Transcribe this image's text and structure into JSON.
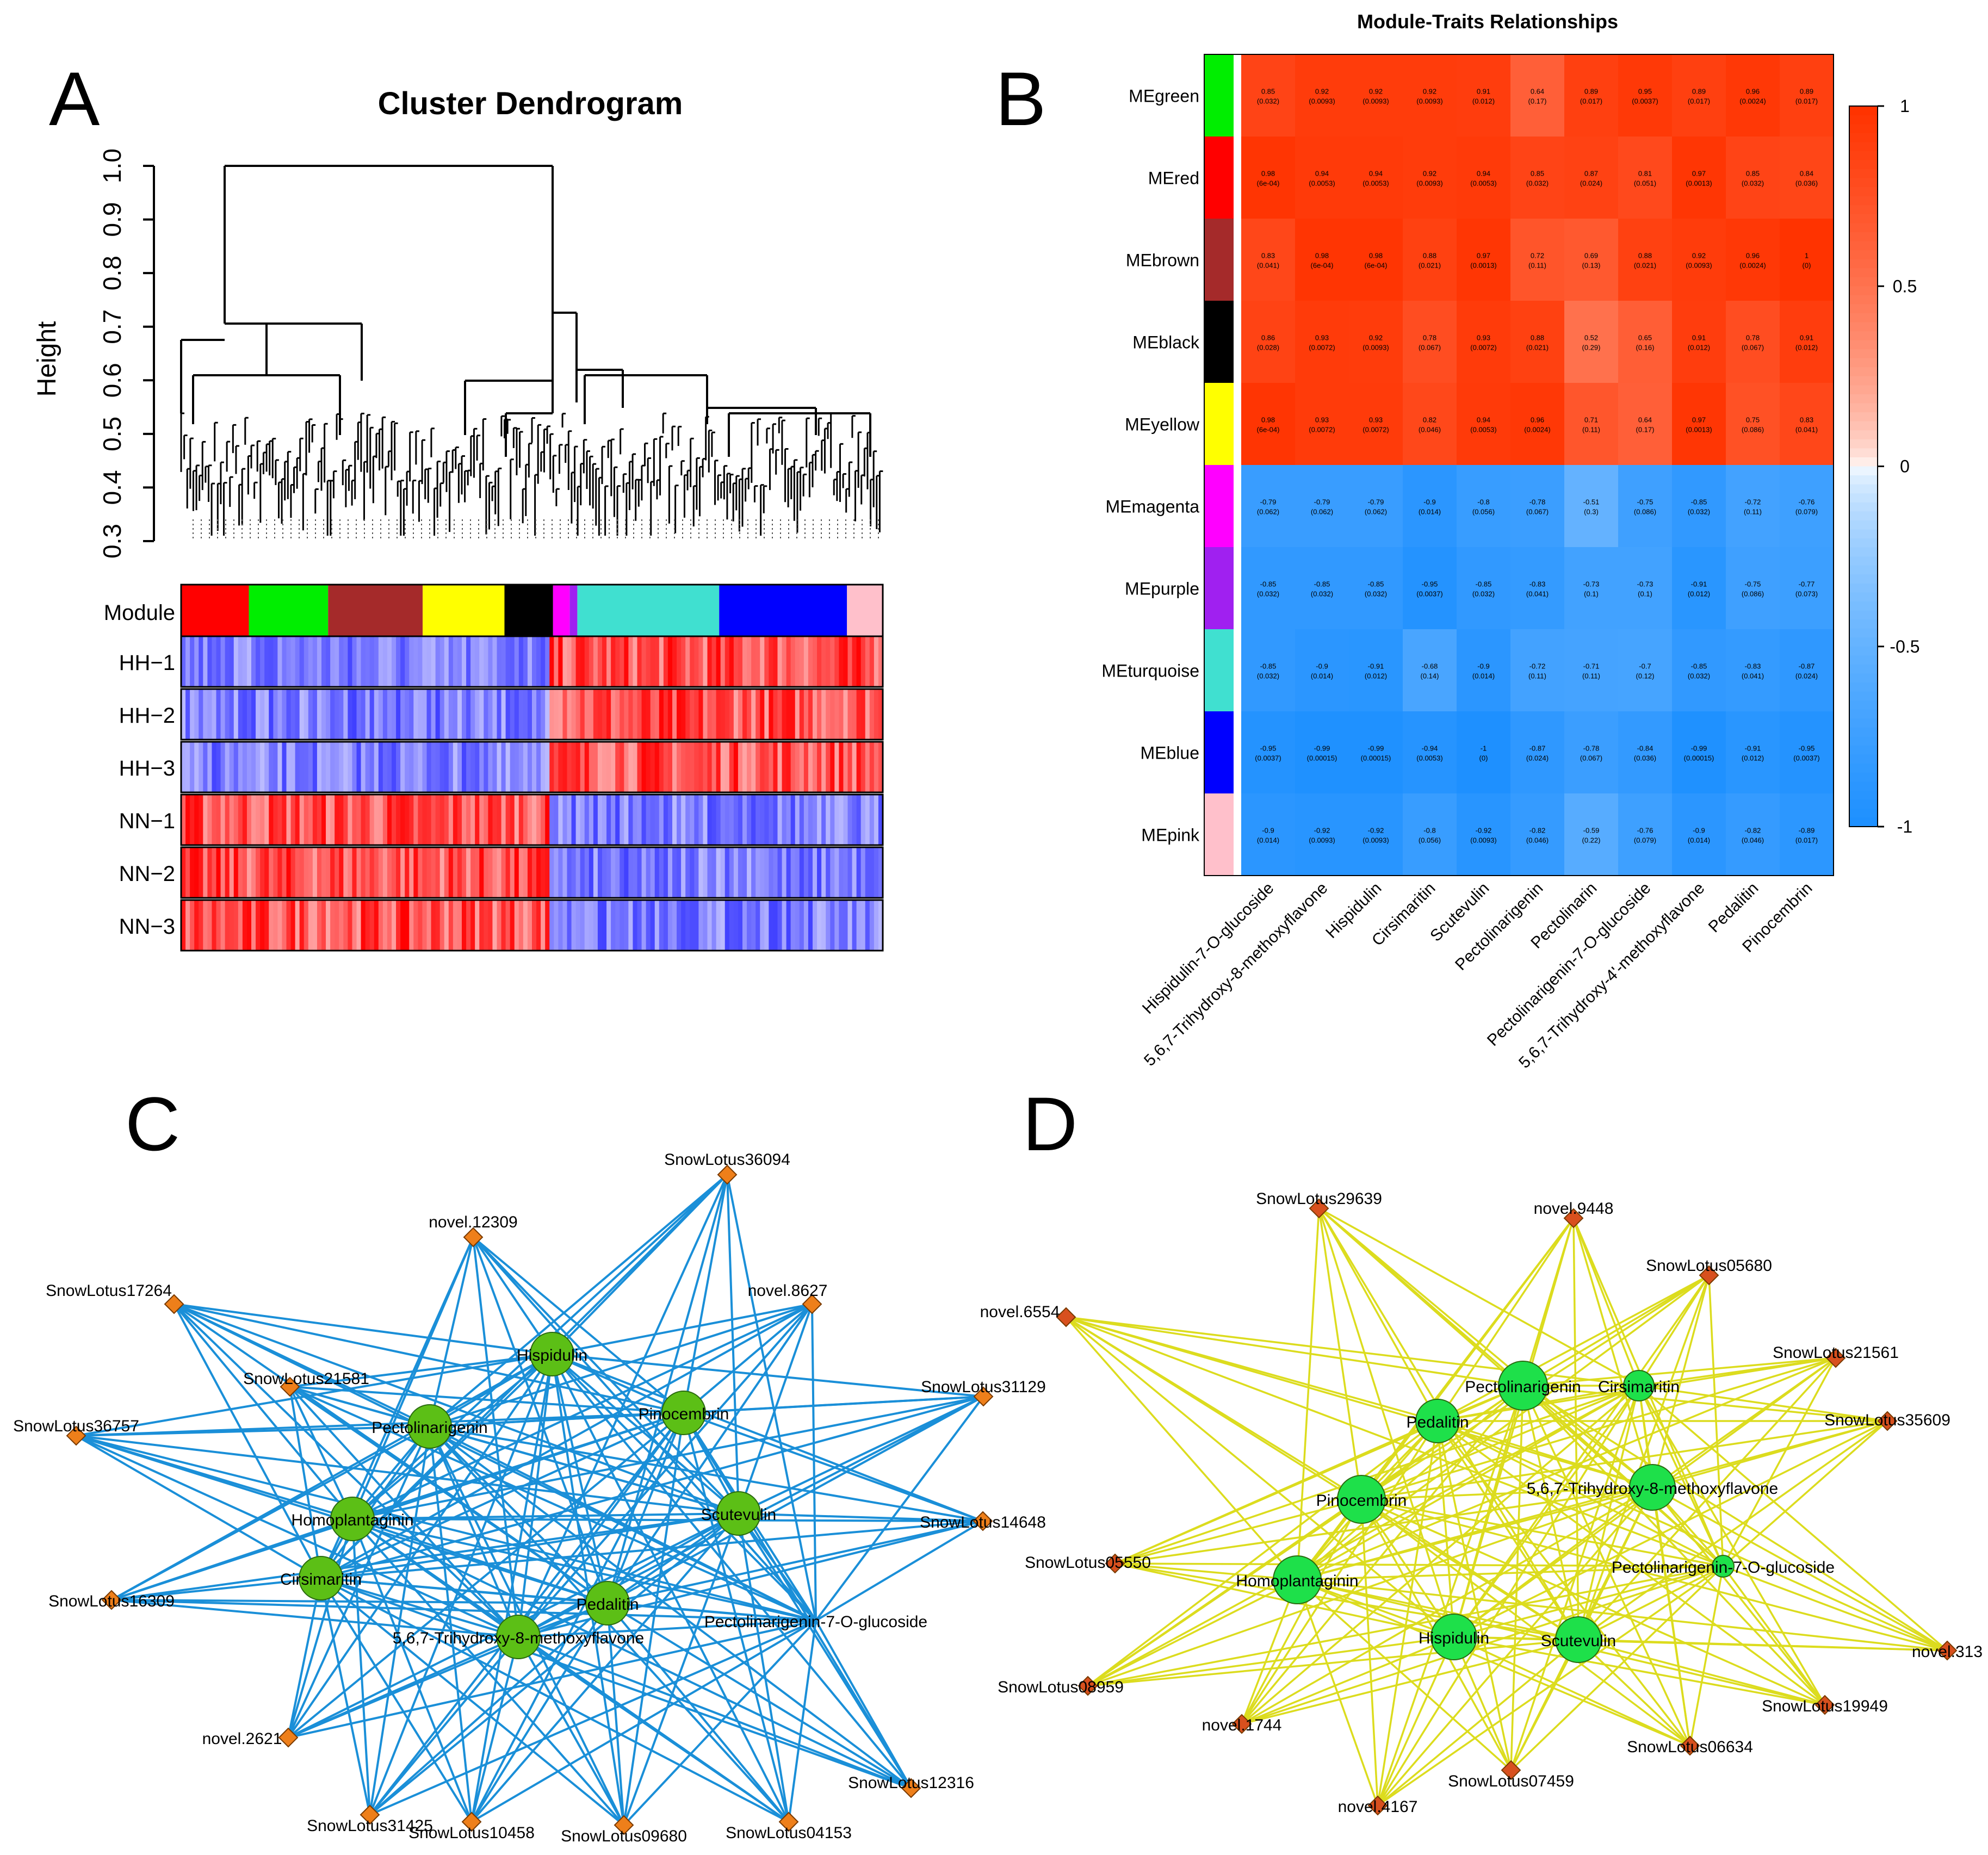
{
  "panels": {
    "a": "A",
    "b": "B",
    "c": "C",
    "d": "D"
  },
  "dendrogram": {
    "title": "Cluster Dendrogram",
    "ylabel": "Height",
    "yticks": [
      "0.3",
      "0.4",
      "0.5",
      "0.6",
      "0.7",
      "0.8",
      "0.9",
      "1.0"
    ],
    "module_label": "Module",
    "modules": [
      {
        "color": "#ff0000",
        "weight": 5.3
      },
      {
        "color": "#00ee00",
        "weight": 6.2
      },
      {
        "color": "#a52a2a",
        "weight": 7.4
      },
      {
        "color": "#ffff00",
        "weight": 6.4
      },
      {
        "color": "#000000",
        "weight": 3.8
      },
      {
        "color": "#ff00ff",
        "weight": 1.3
      },
      {
        "color": "#a020f0",
        "weight": 0.6
      },
      {
        "color": "#40e0d0",
        "weight": 11.1
      },
      {
        "color": "#0000ff",
        "weight": 10.0
      },
      {
        "color": "#ffc0cb",
        "weight": 2.8
      }
    ],
    "sample_rows": [
      "HH−1",
      "HH−2",
      "HH−3",
      "NN−1",
      "NN−2",
      "NN−3"
    ]
  },
  "heatmap": {
    "title": "Module-Traits Relationships",
    "modules": [
      {
        "name": "MEgreen",
        "color": "#00ee00",
        "values": [
          "0.85",
          "0.92",
          "0.92",
          "0.92",
          "0.91",
          "0.64",
          "0.89",
          "0.95",
          "0.89",
          "0.96",
          "0.89"
        ],
        "pvalues": [
          "(0.032)",
          "(0.0093)",
          "(0.0093)",
          "(0.0093)",
          "(0.012)",
          "(0.17)",
          "(0.017)",
          "(0.0037)",
          "(0.017)",
          "(0.0024)",
          "(0.017)"
        ]
      },
      {
        "name": "MEred",
        "color": "#ff0000",
        "values": [
          "0.98",
          "0.94",
          "0.94",
          "0.92",
          "0.94",
          "0.85",
          "0.87",
          "0.81",
          "0.97",
          "0.85",
          "0.84"
        ],
        "pvalues": [
          "(6e-04)",
          "(0.0053)",
          "(0.0053)",
          "(0.0093)",
          "(0.0053)",
          "(0.032)",
          "(0.024)",
          "(0.051)",
          "(0.0013)",
          "(0.032)",
          "(0.036)"
        ]
      },
      {
        "name": "MEbrown",
        "color": "#a52a2a",
        "values": [
          "0.83",
          "0.98",
          "0.98",
          "0.88",
          "0.97",
          "0.72",
          "0.69",
          "0.88",
          "0.92",
          "0.96",
          "1"
        ],
        "pvalues": [
          "(0.041)",
          "(6e-04)",
          "(6e-04)",
          "(0.021)",
          "(0.0013)",
          "(0.11)",
          "(0.13)",
          "(0.021)",
          "(0.0093)",
          "(0.0024)",
          "(0)"
        ]
      },
      {
        "name": "MEblack",
        "color": "#000000",
        "values": [
          "0.86",
          "0.93",
          "0.92",
          "0.78",
          "0.93",
          "0.88",
          "0.52",
          "0.65",
          "0.91",
          "0.78",
          "0.91"
        ],
        "pvalues": [
          "(0.028)",
          "(0.0072)",
          "(0.0093)",
          "(0.067)",
          "(0.0072)",
          "(0.021)",
          "(0.29)",
          "(0.16)",
          "(0.012)",
          "(0.067)",
          "(0.012)"
        ]
      },
      {
        "name": "MEyellow",
        "color": "#ffff00",
        "values": [
          "0.98",
          "0.93",
          "0.93",
          "0.82",
          "0.94",
          "0.96",
          "0.71",
          "0.64",
          "0.97",
          "0.75",
          "0.83"
        ],
        "pvalues": [
          "(6e-04)",
          "(0.0072)",
          "(0.0072)",
          "(0.046)",
          "(0.0053)",
          "(0.0024)",
          "(0.11)",
          "(0.17)",
          "(0.0013)",
          "(0.086)",
          "(0.041)"
        ]
      },
      {
        "name": "MEmagenta",
        "color": "#ff00ff",
        "values": [
          "-0.79",
          "-0.79",
          "-0.79",
          "-0.9",
          "-0.8",
          "-0.78",
          "-0.51",
          "-0.75",
          "-0.85",
          "-0.72",
          "-0.76"
        ],
        "pvalues": [
          "(0.062)",
          "(0.062)",
          "(0.062)",
          "(0.014)",
          "(0.056)",
          "(0.067)",
          "(0.3)",
          "(0.086)",
          "(0.032)",
          "(0.11)",
          "(0.079)"
        ]
      },
      {
        "name": "MEpurple",
        "color": "#a020f0",
        "values": [
          "-0.85",
          "-0.85",
          "-0.85",
          "-0.95",
          "-0.85",
          "-0.83",
          "-0.73",
          "-0.73",
          "-0.91",
          "-0.75",
          "-0.77"
        ],
        "pvalues": [
          "(0.032)",
          "(0.032)",
          "(0.032)",
          "(0.0037)",
          "(0.032)",
          "(0.041)",
          "(0.1)",
          "(0.1)",
          "(0.012)",
          "(0.086)",
          "(0.073)"
        ]
      },
      {
        "name": "MEturquoise",
        "color": "#40e0d0",
        "values": [
          "-0.85",
          "-0.9",
          "-0.91",
          "-0.68",
          "-0.9",
          "-0.72",
          "-0.71",
          "-0.7",
          "-0.85",
          "-0.83",
          "-0.87"
        ],
        "pvalues": [
          "(0.032)",
          "(0.014)",
          "(0.012)",
          "(0.14)",
          "(0.014)",
          "(0.11)",
          "(0.11)",
          "(0.12)",
          "(0.032)",
          "(0.041)",
          "(0.024)"
        ]
      },
      {
        "name": "MEblue",
        "color": "#0000ff",
        "values": [
          "-0.95",
          "-0.99",
          "-0.99",
          "-0.94",
          "-1",
          "-0.87",
          "-0.78",
          "-0.84",
          "-0.99",
          "-0.91",
          "-0.95"
        ],
        "pvalues": [
          "(0.0037)",
          "(0.00015)",
          "(0.00015)",
          "(0.0053)",
          "(0)",
          "(0.024)",
          "(0.067)",
          "(0.036)",
          "(0.00015)",
          "(0.012)",
          "(0.0037)"
        ]
      },
      {
        "name": "MEpink",
        "color": "#ffc0cb",
        "values": [
          "-0.9",
          "-0.92",
          "-0.92",
          "-0.8",
          "-0.92",
          "-0.82",
          "-0.59",
          "-0.76",
          "-0.9",
          "-0.82",
          "-0.89"
        ],
        "pvalues": [
          "(0.014)",
          "(0.0093)",
          "(0.0093)",
          "(0.056)",
          "(0.0093)",
          "(0.046)",
          "(0.22)",
          "(0.079)",
          "(0.014)",
          "(0.046)",
          "(0.017)"
        ]
      }
    ],
    "traits": [
      "Hispidulin-7-O-glucoside",
      "5,6,7-Trihydroxy-8-methoxyflavone",
      "Hispidulin",
      "Cirsimaritin",
      "Scutevulin",
      "Pectolinarigenin",
      "Pectolinarin",
      "Pectolinarigenin-7-O-glucoside",
      "5,6,7-Trihydroxy-4'-methoxyflavone",
      "Pedalitin",
      "Pinocembrin"
    ],
    "scale_labels": [
      "1",
      "0.5",
      "0",
      "-0.5",
      "-1"
    ],
    "scale_colors": {
      "pos": "#ff3300",
      "mid": "#ffffff",
      "neg": "#1e90ff"
    }
  },
  "network_c": {
    "edge_color": "#1a8fd8",
    "hub_color": "#5cbf16",
    "gene_color": "#ee7f1a",
    "hubs": [
      "Hispidulin",
      "Pinocembrin",
      "Pectolinarigenin",
      "Homoplantaginin",
      "Scutevulin",
      "Cirsimaritin",
      "Pedalitin",
      "5,6,7-Trihydroxy-8-methoxyflavone",
      "Pectolinarigenin-7-O-glucoside"
    ],
    "genes": [
      "SnowLotus36094",
      "novel.12309",
      "novel.8627",
      "SnowLotus17264",
      "SnowLotus31129",
      "SnowLotus21581",
      "SnowLotus36757",
      "SnowLotus14648",
      "SnowLotus16309",
      "novel.2621",
      "SnowLotus12316",
      "SnowLotus31425",
      "SnowLotus10458",
      "SnowLotus09680",
      "SnowLotus04153"
    ]
  },
  "network_d": {
    "edge_color": "#dcdc1e",
    "hub_color": "#1ee04a",
    "gene_color": "#d8501e",
    "hubs": [
      "Pectolinarigenin",
      "Cirsimaritin",
      "Pedalitin",
      "5,6,7-Trihydroxy-8-methoxyflavone",
      "Pinocembrin",
      "Pectolinarigenin-7-O-glucoside",
      "Homoplantaginin",
      "Hispidulin",
      "Scutevulin"
    ],
    "genes": [
      "SnowLotus29639",
      "novel.9448",
      "SnowLotus05680",
      "novel.6554",
      "SnowLotus21561",
      "SnowLotus35609",
      "SnowLotus05550",
      "novel.313",
      "SnowLotus08959",
      "SnowLotus19949",
      "novel.1744",
      "SnowLotus06634",
      "SnowLotus07459",
      "novel.4167"
    ]
  }
}
